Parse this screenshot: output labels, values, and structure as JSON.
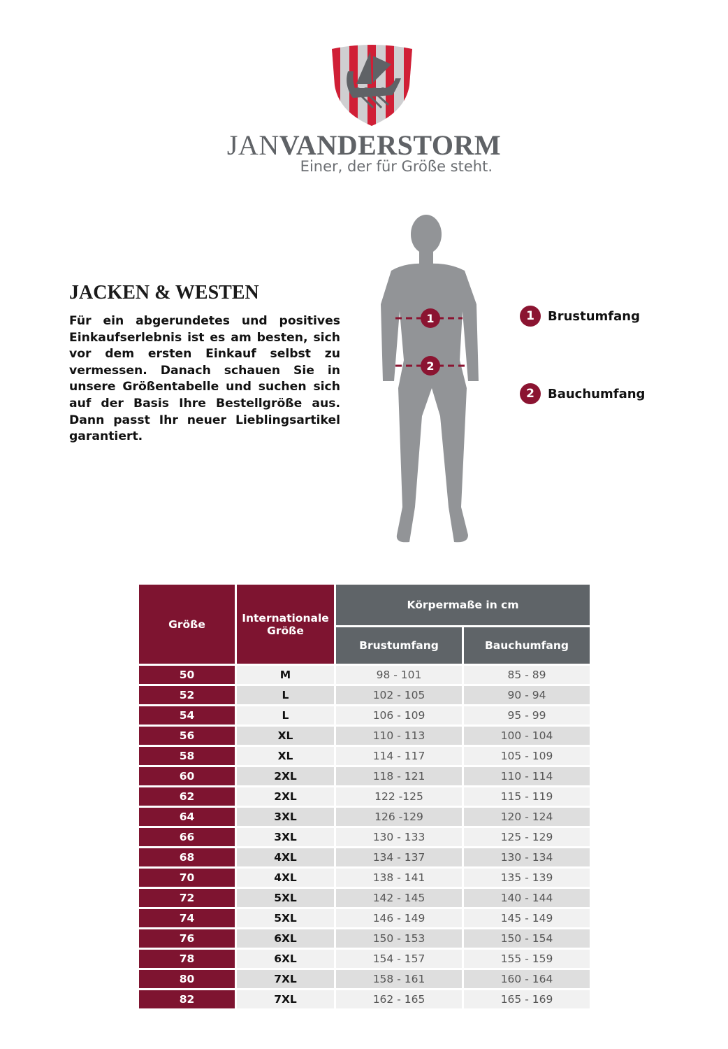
{
  "brand": {
    "name_light": "JAN",
    "name_bold": "VANDERSTORM",
    "tagline": "Einer, der für Größe steht.",
    "colors": {
      "red": "#d01f36",
      "gray": "#5f6266",
      "accent": "#7e1430"
    }
  },
  "section": {
    "title": "JACKEN & WESTEN",
    "body": "Für ein abgerundetes und positives Einkaufserlebnis ist es am besten, sich vor dem ersten Einkauf selbst zu vermessen. Danach schauen Sie in unsere Größentabelle und suchen sich auf der Basis Ihre Bestellgröße aus. Dann passt Ihr neuer Lieblingsartikel garantiert."
  },
  "legend": [
    {
      "num": "1",
      "label": "Brustumfang"
    },
    {
      "num": "2",
      "label": "Bauchumfang"
    }
  ],
  "table": {
    "headers": {
      "size": "Größe",
      "intl": "Internationale Größe",
      "group": "Körpermaße in cm",
      "chest": "Brustumfang",
      "belly": "Bauchumfang"
    },
    "rows": [
      [
        "50",
        "M",
        "98 - 101",
        "85 - 89"
      ],
      [
        "52",
        "L",
        "102 - 105",
        "90 - 94"
      ],
      [
        "54",
        "L",
        "106 - 109",
        "95 - 99"
      ],
      [
        "56",
        "XL",
        "110 - 113",
        "100 - 104"
      ],
      [
        "58",
        "XL",
        "114 - 117",
        "105 - 109"
      ],
      [
        "60",
        "2XL",
        "118 - 121",
        "110 - 114"
      ],
      [
        "62",
        "2XL",
        "122 -125",
        "115 - 119"
      ],
      [
        "64",
        "3XL",
        "126 -129",
        "120 - 124"
      ],
      [
        "66",
        "3XL",
        "130 - 133",
        "125 - 129"
      ],
      [
        "68",
        "4XL",
        "134 - 137",
        "130 - 134"
      ],
      [
        "70",
        "4XL",
        "138 - 141",
        "135 - 139"
      ],
      [
        "72",
        "5XL",
        "142 - 145",
        "140 - 144"
      ],
      [
        "74",
        "5XL",
        "146 - 149",
        "145 - 149"
      ],
      [
        "76",
        "6XL",
        "150 - 153",
        "150 - 154"
      ],
      [
        "78",
        "6XL",
        "154 - 157",
        "155 - 159"
      ],
      [
        "80",
        "7XL",
        "158 - 161",
        "160 - 164"
      ],
      [
        "82",
        "7XL",
        "162 - 165",
        "165 - 169"
      ]
    ]
  }
}
